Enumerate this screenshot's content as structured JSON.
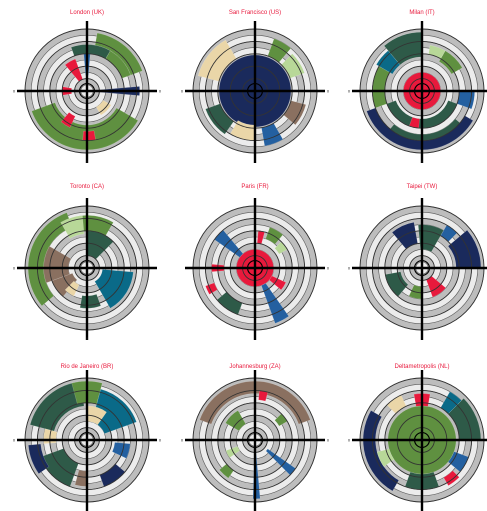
{
  "colors": {
    "title": "#e8193c",
    "ring_grey": "#d0d0d0",
    "ring_dark": "#6e6e6e",
    "axis": "#000000",
    "cats": {
      "green": "#5f9040",
      "darkgreen": "#2e5a48",
      "navy": "#1a2a5c",
      "blue": "#2460a0",
      "red": "#e8193c",
      "brown": "#8a7060",
      "beige": "#ead6a8",
      "lightgreen": "#b8d898",
      "teal": "#0a6a88"
    }
  },
  "chart_data": [
    {
      "type": "radial",
      "title": "London  (UK)",
      "tick_labels": {
        "top": "",
        "bottom": "0",
        "left": "0",
        "right": "0"
      },
      "segments": [
        {
          "cat": "green",
          "r": [
            0.55,
            0.95
          ],
          "a": [
            200,
            330
          ]
        },
        {
          "cat": "green",
          "r": [
            0.75,
            0.95
          ],
          "a": [
            20,
            80
          ]
        },
        {
          "cat": "green",
          "r": [
            0.6,
            0.75
          ],
          "a": [
            20,
            60
          ]
        },
        {
          "cat": "navy",
          "r": [
            0.2,
            0.85
          ],
          "a": [
            -5,
            5
          ]
        },
        {
          "cat": "blue",
          "r": [
            0.25,
            0.7
          ],
          "a": [
            85,
            95
          ]
        },
        {
          "cat": "red",
          "r": [
            0.2,
            0.55
          ],
          "a": [
            110,
            130
          ]
        },
        {
          "cat": "red",
          "r": [
            0.45,
            0.65
          ],
          "a": [
            230,
            245
          ]
        },
        {
          "cat": "red",
          "r": [
            0.65,
            0.8
          ],
          "a": [
            265,
            280
          ]
        },
        {
          "cat": "red",
          "r": [
            0.25,
            0.4
          ],
          "a": [
            170,
            190
          ]
        },
        {
          "cat": "darkgreen",
          "r": [
            0.6,
            0.75
          ],
          "a": [
            60,
            110
          ]
        },
        {
          "cat": "beige",
          "r": [
            0.3,
            0.45
          ],
          "a": [
            300,
            330
          ]
        }
      ]
    },
    {
      "type": "radial",
      "title": "San Francisco  (US)",
      "tick_labels": {
        "top": "",
        "bottom": "",
        "left": "0",
        "right": "0"
      },
      "segments": [
        {
          "cat": "navy",
          "r": [
            0.0,
            0.58
          ],
          "a": [
            0,
            360
          ]
        },
        {
          "cat": "beige",
          "r": [
            0.6,
            0.95
          ],
          "a": [
            120,
            165
          ]
        },
        {
          "cat": "beige",
          "r": [
            0.55,
            0.8
          ],
          "a": [
            240,
            270
          ]
        },
        {
          "cat": "darkgreen",
          "r": [
            0.6,
            0.85
          ],
          "a": [
            200,
            235
          ]
        },
        {
          "cat": "blue",
          "r": [
            0.6,
            0.9
          ],
          "a": [
            280,
            300
          ]
        },
        {
          "cat": "lightgreen",
          "r": [
            0.6,
            0.85
          ],
          "a": [
            20,
            45
          ]
        },
        {
          "cat": "brown",
          "r": [
            0.6,
            0.85
          ],
          "a": [
            320,
            345
          ]
        },
        {
          "cat": "green",
          "r": [
            0.6,
            0.9
          ],
          "a": [
            50,
            70
          ]
        }
      ]
    },
    {
      "type": "radial",
      "title": "Milan  (IT)",
      "tick_labels": {
        "top": "",
        "bottom": "0",
        "left": "0",
        "right": "0"
      },
      "segments": [
        {
          "cat": "darkgreen",
          "r": [
            0.55,
            0.95
          ],
          "a": [
            90,
            130
          ]
        },
        {
          "cat": "darkgreen",
          "r": [
            0.45,
            0.6
          ],
          "a": [
            200,
            340
          ]
        },
        {
          "cat": "darkgreen",
          "r": [
            0.7,
            0.9
          ],
          "a": [
            230,
            320
          ]
        },
        {
          "cat": "navy",
          "r": [
            0.8,
            0.95
          ],
          "a": [
            200,
            330
          ]
        },
        {
          "cat": "green",
          "r": [
            0.6,
            0.8
          ],
          "a": [
            150,
            200
          ]
        },
        {
          "cat": "green",
          "r": [
            0.55,
            0.75
          ],
          "a": [
            30,
            60
          ]
        },
        {
          "cat": "teal",
          "r": [
            0.55,
            0.85
          ],
          "a": [
            130,
            150
          ]
        },
        {
          "cat": "blue",
          "r": [
            0.6,
            0.85
          ],
          "a": [
            340,
            360
          ]
        },
        {
          "cat": "red",
          "r": [
            0.0,
            0.3
          ],
          "a": [
            0,
            360
          ]
        },
        {
          "cat": "red",
          "r": [
            0.45,
            0.6
          ],
          "a": [
            250,
            265
          ]
        },
        {
          "cat": "lightgreen",
          "r": [
            0.6,
            0.75
          ],
          "a": [
            60,
            80
          ]
        }
      ]
    },
    {
      "type": "radial",
      "title": "Toronto  (CA)",
      "tick_labels": {
        "top": "",
        "bottom": "0",
        "left": "0",
        "right": ""
      },
      "segments": [
        {
          "cat": "green",
          "r": [
            0.7,
            0.95
          ],
          "a": [
            110,
            220
          ]
        },
        {
          "cat": "green",
          "r": [
            0.6,
            0.85
          ],
          "a": [
            60,
            100
          ]
        },
        {
          "cat": "teal",
          "r": [
            0.25,
            0.75
          ],
          "a": [
            300,
            355
          ]
        },
        {
          "cat": "brown",
          "r": [
            0.3,
            0.7
          ],
          "a": [
            150,
            200
          ]
        },
        {
          "cat": "brown",
          "r": [
            0.25,
            0.6
          ],
          "a": [
            200,
            230
          ]
        },
        {
          "cat": "darkgreen",
          "r": [
            0.2,
            0.6
          ],
          "a": [
            45,
            90
          ]
        },
        {
          "cat": "darkgreen",
          "r": [
            0.45,
            0.65
          ],
          "a": [
            260,
            290
          ]
        },
        {
          "cat": "lightgreen",
          "r": [
            0.55,
            0.85
          ],
          "a": [
            95,
            120
          ]
        },
        {
          "cat": "beige",
          "r": [
            0.3,
            0.5
          ],
          "a": [
            225,
            245
          ]
        }
      ]
    },
    {
      "type": "radial",
      "title": "Paris  (FR)",
      "tick_labels": {
        "top": "",
        "bottom": "",
        "left": "",
        "right": "0"
      },
      "segments": [
        {
          "cat": "red",
          "r": [
            0.0,
            0.3
          ],
          "a": [
            0,
            360
          ]
        },
        {
          "cat": "blue",
          "r": [
            0.3,
            0.95
          ],
          "a": [
            290,
            305
          ]
        },
        {
          "cat": "blue",
          "r": [
            0.3,
            0.8
          ],
          "a": [
            130,
            145
          ]
        },
        {
          "cat": "green",
          "r": [
            0.5,
            0.7
          ],
          "a": [
            50,
            70
          ]
        },
        {
          "cat": "darkgreen",
          "r": [
            0.6,
            0.8
          ],
          "a": [
            220,
            250
          ]
        },
        {
          "cat": "red",
          "r": [
            0.4,
            0.6
          ],
          "a": [
            75,
            85
          ]
        },
        {
          "cat": "red",
          "r": [
            0.5,
            0.7
          ],
          "a": [
            175,
            185
          ]
        },
        {
          "cat": "red",
          "r": [
            0.3,
            0.55
          ],
          "a": [
            320,
            335
          ]
        },
        {
          "cat": "red",
          "r": [
            0.7,
            0.85
          ],
          "a": [
            200,
            210
          ]
        },
        {
          "cat": "lightgreen",
          "r": [
            0.45,
            0.6
          ],
          "a": [
            30,
            45
          ]
        }
      ]
    },
    {
      "type": "radial",
      "title": "Taipei  (TW)",
      "tick_labels": {
        "top": "",
        "bottom": "",
        "left": "0",
        "right": "0"
      },
      "segments": [
        {
          "cat": "navy",
          "r": [
            0.55,
            0.95
          ],
          "a": [
            0,
            40
          ]
        },
        {
          "cat": "navy",
          "r": [
            0.4,
            0.75
          ],
          "a": [
            100,
            130
          ]
        },
        {
          "cat": "darkgreen",
          "r": [
            0.3,
            0.7
          ],
          "a": [
            60,
            95
          ]
        },
        {
          "cat": "darkgreen",
          "r": [
            0.35,
            0.6
          ],
          "a": [
            190,
            230
          ]
        },
        {
          "cat": "red",
          "r": [
            0.2,
            0.5
          ],
          "a": [
            290,
            320
          ]
        },
        {
          "cat": "green",
          "r": [
            0.3,
            0.5
          ],
          "a": [
            245,
            270
          ]
        },
        {
          "cat": "blue",
          "r": [
            0.6,
            0.8
          ],
          "a": [
            45,
            60
          ]
        }
      ]
    },
    {
      "type": "radial",
      "title": "Rio de Janeiro  (BR)",
      "tick_labels": {
        "top": "",
        "bottom": "",
        "left": "0",
        "right": "0"
      },
      "segments": [
        {
          "cat": "teal",
          "r": [
            0.3,
            0.85
          ],
          "a": [
            20,
            75
          ]
        },
        {
          "cat": "beige",
          "r": [
            0.3,
            0.55
          ],
          "a": [
            55,
            90
          ]
        },
        {
          "cat": "darkgreen",
          "r": [
            0.55,
            0.95
          ],
          "a": [
            95,
            165
          ]
        },
        {
          "cat": "darkgreen",
          "r": [
            0.4,
            0.8
          ],
          "a": [
            200,
            250
          ]
        },
        {
          "cat": "green",
          "r": [
            0.6,
            0.95
          ],
          "a": [
            75,
            105
          ]
        },
        {
          "cat": "navy",
          "r": [
            0.75,
            0.95
          ],
          "a": [
            185,
            215
          ]
        },
        {
          "cat": "navy",
          "r": [
            0.6,
            0.8
          ],
          "a": [
            290,
            320
          ]
        },
        {
          "cat": "blue",
          "r": [
            0.45,
            0.7
          ],
          "a": [
            335,
            355
          ]
        },
        {
          "cat": "beige",
          "r": [
            0.5,
            0.7
          ],
          "a": [
            165,
            185
          ]
        },
        {
          "cat": "brown",
          "r": [
            0.5,
            0.75
          ],
          "a": [
            255,
            270
          ]
        }
      ]
    },
    {
      "type": "radial",
      "title": "Johannesburg  (ZA)",
      "tick_labels": {
        "top": "",
        "bottom": "",
        "left": "0",
        "right": "0"
      },
      "segments": [
        {
          "cat": "brown",
          "r": [
            0.75,
            0.95
          ],
          "a": [
            20,
            160
          ]
        },
        {
          "cat": "blue",
          "r": [
            0.2,
            0.95
          ],
          "a": [
            268,
            275
          ]
        },
        {
          "cat": "blue",
          "r": [
            0.25,
            0.8
          ],
          "a": [
            315,
            325
          ]
        },
        {
          "cat": "green",
          "r": [
            0.3,
            0.55
          ],
          "a": [
            120,
            150
          ]
        },
        {
          "cat": "green",
          "r": [
            0.6,
            0.75
          ],
          "a": [
            220,
            235
          ]
        },
        {
          "cat": "green",
          "r": [
            0.45,
            0.6
          ],
          "a": [
            30,
            45
          ]
        },
        {
          "cat": "red",
          "r": [
            0.65,
            0.8
          ],
          "a": [
            75,
            85
          ]
        },
        {
          "cat": "lightgreen",
          "r": [
            0.3,
            0.5
          ],
          "a": [
            200,
            215
          ]
        }
      ]
    },
    {
      "type": "radial",
      "title": "Deltametropolis  (NL)",
      "tick_labels": {
        "top": "",
        "bottom": "",
        "left": "0",
        "right": "0"
      },
      "segments": [
        {
          "cat": "green",
          "r": [
            0.0,
            0.55
          ],
          "a": [
            0,
            360
          ]
        },
        {
          "cat": "navy",
          "r": [
            0.75,
            0.95
          ],
          "a": [
            150,
            240
          ]
        },
        {
          "cat": "darkgreen",
          "r": [
            0.6,
            0.95
          ],
          "a": [
            0,
            45
          ]
        },
        {
          "cat": "darkgreen",
          "r": [
            0.55,
            0.8
          ],
          "a": [
            250,
            290
          ]
        },
        {
          "cat": "teal",
          "r": [
            0.6,
            0.9
          ],
          "a": [
            45,
            60
          ]
        },
        {
          "cat": "blue",
          "r": [
            0.55,
            0.8
          ],
          "a": [
            320,
            340
          ]
        },
        {
          "cat": "red",
          "r": [
            0.55,
            0.75
          ],
          "a": [
            80,
            100
          ]
        },
        {
          "cat": "red",
          "r": [
            0.7,
            0.85
          ],
          "a": [
            300,
            315
          ]
        },
        {
          "cat": "beige",
          "r": [
            0.6,
            0.8
          ],
          "a": [
            115,
            135
          ]
        },
        {
          "cat": "lightgreen",
          "r": [
            0.55,
            0.75
          ],
          "a": [
            195,
            215
          ]
        }
      ]
    }
  ]
}
